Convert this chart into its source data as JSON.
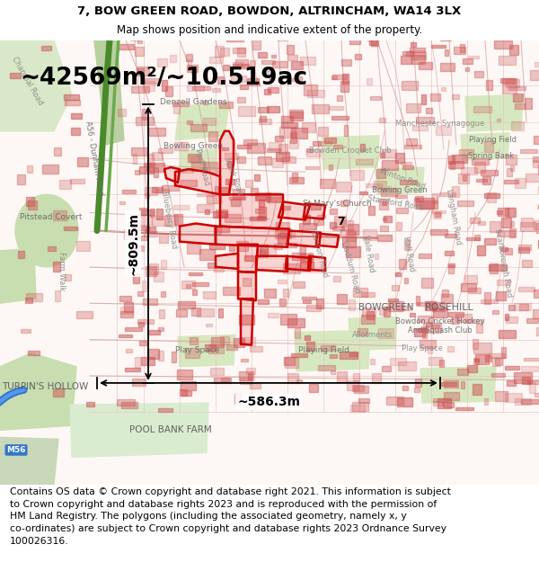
{
  "title_line1": "7, BOW GREEN ROAD, BOWDON, ALTRINCHAM, WA14 3LX",
  "title_line2": "Map shows position and indicative extent of the property.",
  "area_text": "~42569m²/~10.519ac",
  "dim_horizontal": "~586.3m",
  "dim_vertical": "~809.5m",
  "copyright_text": "Contains OS data © Crown copyright and database right 2021. This information is subject\nto Crown copyright and database rights 2023 and is reproduced with the permission of\nHM Land Registry. The polygons (including the associated geometry, namely x, y\nco-ordinates) are subject to Crown copyright and database rights 2023 Ordnance Survey\n100026316.",
  "bg_color": "#ffffff",
  "map_bg": "#fdf8f5",
  "title_fontsize": 9.5,
  "subtitle_fontsize": 8.5,
  "area_fontsize": 19,
  "dim_fontsize": 9,
  "copyright_fontsize": 7.8,
  "fig_width": 6.0,
  "fig_height": 6.25
}
